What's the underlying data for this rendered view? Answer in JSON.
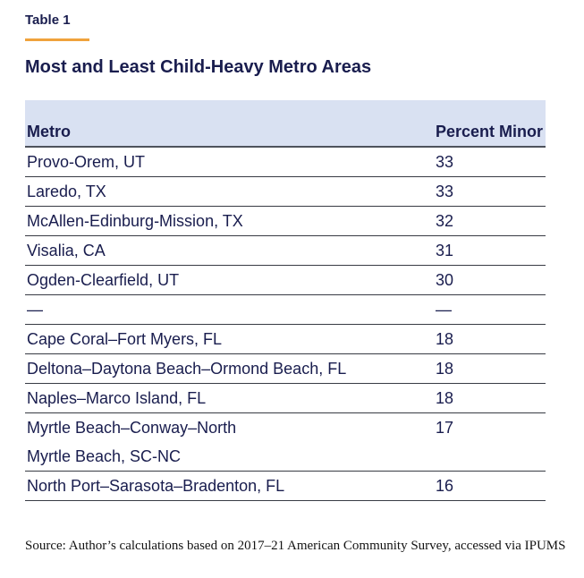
{
  "figure": {
    "label": "Table 1",
    "title": "Most and Least Child-Heavy Metro Areas",
    "source": "Source: Author’s calculations based on 2017–21 American Community Survey, accessed via IPUMS"
  },
  "chart_data": {
    "type": "table",
    "title": "Most and Least Child-Heavy Metro Areas",
    "columns": [
      "Metro",
      "Percent Minor"
    ],
    "rows": [
      {
        "metro": "Provo-Orem, UT",
        "percent_minor": "33"
      },
      {
        "metro": "Laredo, TX",
        "percent_minor": "33"
      },
      {
        "metro": "McAllen-Edinburg-Mission, TX",
        "percent_minor": "32"
      },
      {
        "metro": "Visalia, CA",
        "percent_minor": "31"
      },
      {
        "metro": "Ogden-Clearfield, UT",
        "percent_minor": "30"
      },
      {
        "metro": "—",
        "percent_minor": "—"
      },
      {
        "metro": "Cape Coral–Fort Myers, FL",
        "percent_minor": "18"
      },
      {
        "metro": "Deltona–Daytona Beach–Ormond Beach, FL",
        "percent_minor": "18"
      },
      {
        "metro": "Naples–Marco Island, FL",
        "percent_minor": "18"
      },
      {
        "metro": "Myrtle Beach–Conway–North\nMyrtle Beach, SC-NC",
        "percent_minor": "17"
      },
      {
        "metro": "North Port–Sarasota–Bradenton, FL",
        "percent_minor": "16"
      }
    ]
  },
  "colors": {
    "navy_text": "#191d4e",
    "accent_orange": "#f0a23c",
    "header_background": "#d9e1f2",
    "row_divider": "#383b44"
  }
}
